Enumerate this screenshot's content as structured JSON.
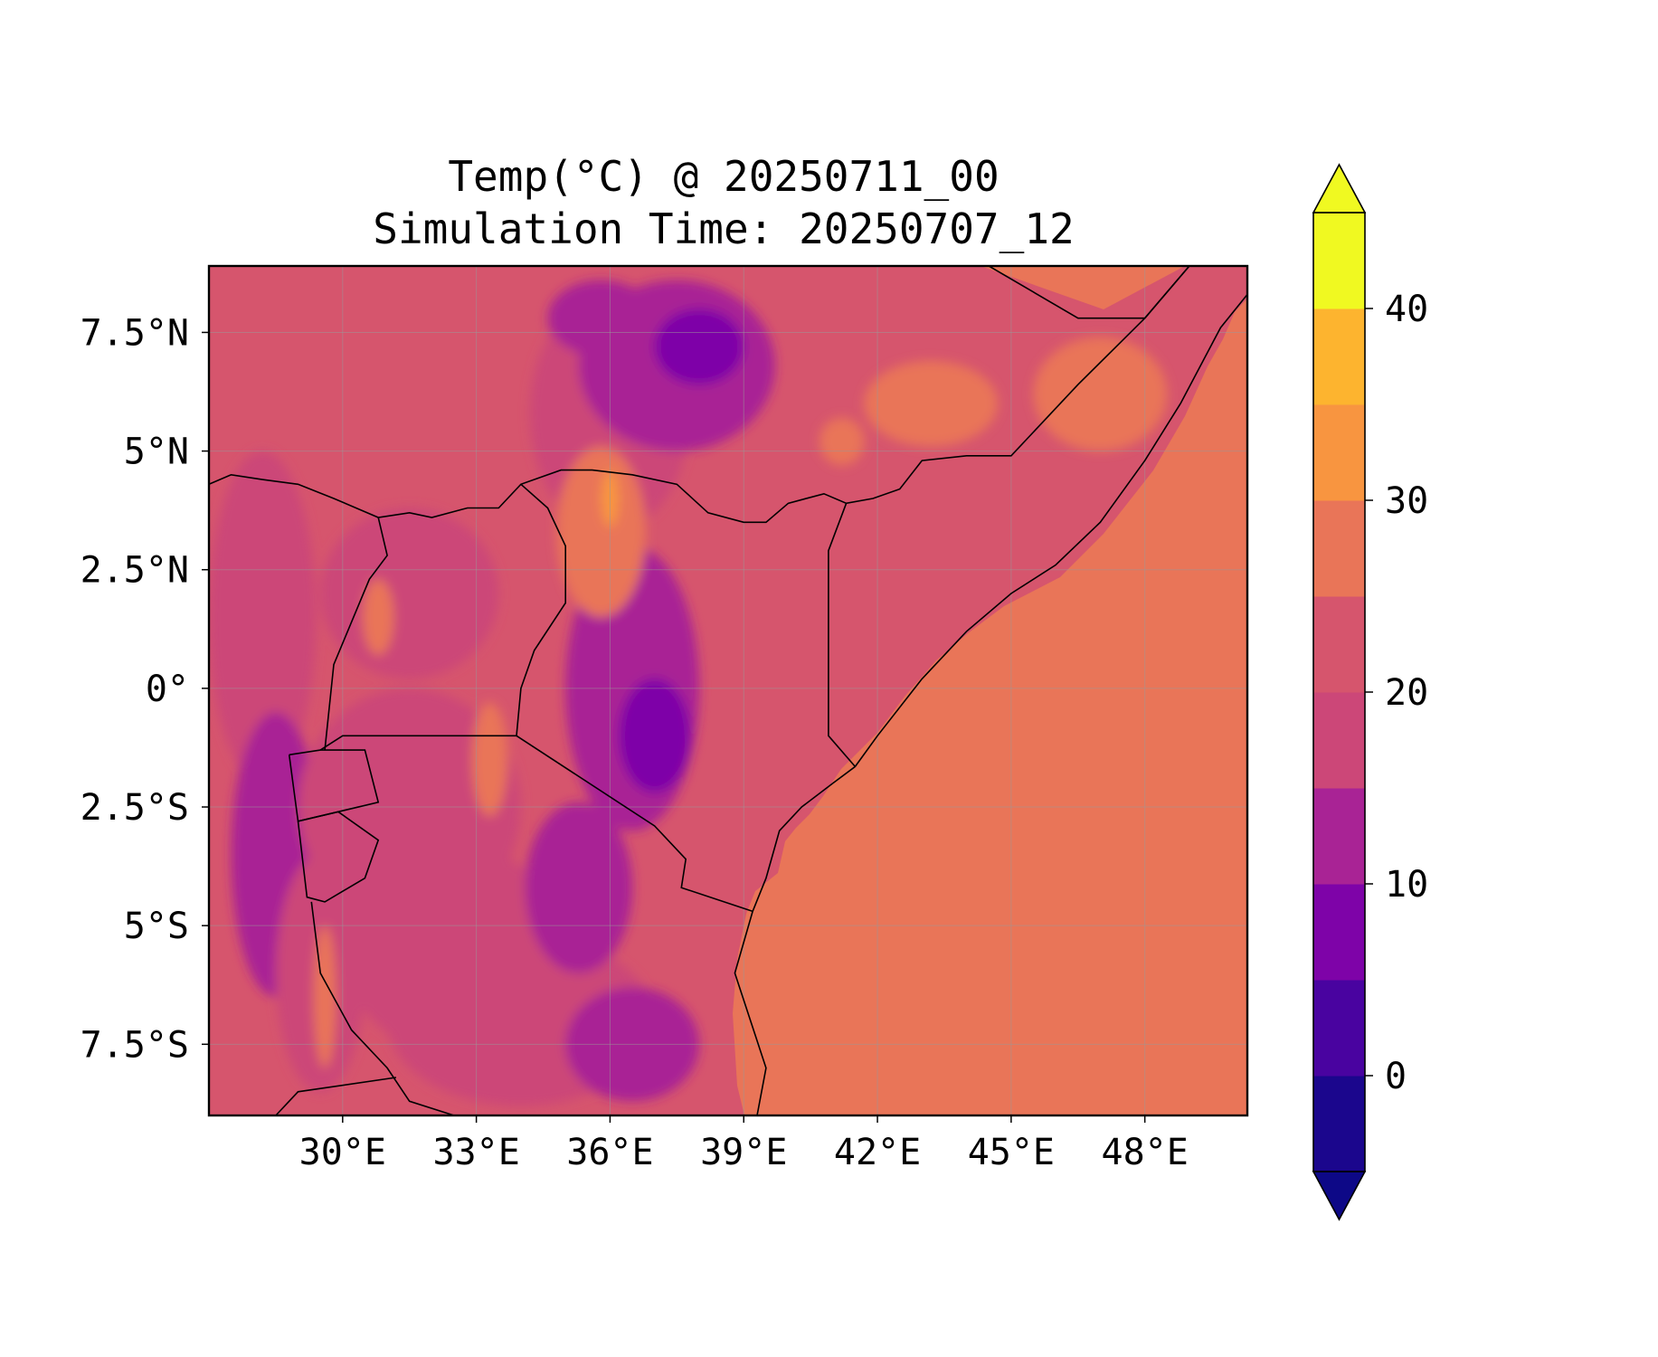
{
  "figure": {
    "title_line1": "Temp(°C) @ 20250711_00",
    "title_line2": "Simulation Time: 20250707_12"
  },
  "map": {
    "projection": "PlateCarree",
    "lon_range": [
      27.0,
      50.3
    ],
    "lat_range": [
      -9.0,
      8.9
    ],
    "gridlines": true,
    "x_ticks": [
      {
        "value": 30,
        "label": "30°E"
      },
      {
        "value": 33,
        "label": "33°E"
      },
      {
        "value": 36,
        "label": "36°E"
      },
      {
        "value": 39,
        "label": "39°E"
      },
      {
        "value": 42,
        "label": "42°E"
      },
      {
        "value": 45,
        "label": "45°E"
      },
      {
        "value": 48,
        "label": "48°E"
      }
    ],
    "y_ticks": [
      {
        "value": 7.5,
        "label": "7.5°N"
      },
      {
        "value": 5,
        "label": "5°N"
      },
      {
        "value": 2.5,
        "label": "2.5°N"
      },
      {
        "value": 0,
        "label": "0°"
      },
      {
        "value": -2.5,
        "label": "2.5°S"
      },
      {
        "value": -5,
        "label": "5°S"
      },
      {
        "value": -7.5,
        "label": "7.5°S"
      }
    ],
    "ocean_color": "#e97558",
    "land_base_color": "#d6556d",
    "border_color": "#000000"
  },
  "colorbar": {
    "levels": [
      -5,
      0,
      5,
      10,
      15,
      20,
      25,
      30,
      35,
      40,
      45
    ],
    "colors": [
      "#1b068d",
      "#4903a0",
      "#7e03a8",
      "#a92395",
      "#cc4778",
      "#d6556d",
      "#e97558",
      "#f89540",
      "#fdb42f",
      "#f0f921"
    ],
    "under_color": "#0d0887",
    "over_color": "#f0f921",
    "extend": "both",
    "ticks": [
      {
        "value": 0,
        "label": "0"
      },
      {
        "value": 10,
        "label": "10"
      },
      {
        "value": 20,
        "label": "20"
      },
      {
        "value": 30,
        "label": "30"
      },
      {
        "value": 40,
        "label": "40"
      }
    ]
  }
}
